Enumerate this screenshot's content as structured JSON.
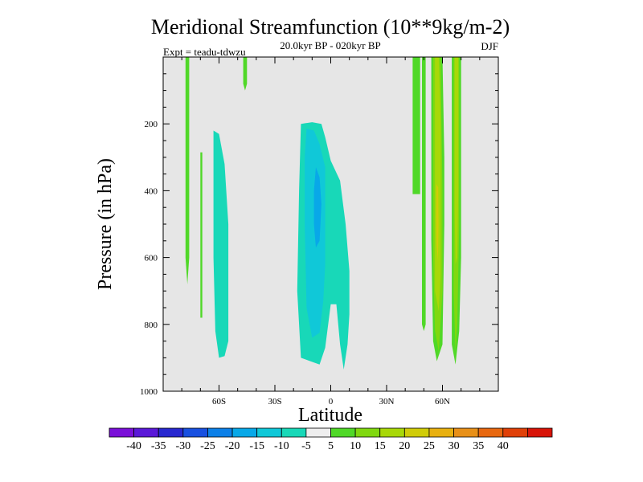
{
  "chart_data": {
    "type": "contour",
    "title": "Meridional Streamfunction (10**9kg/m-2)",
    "subtitle": "20.0kyr BP - 020kyr BP",
    "experiment": "Expt = teadu-tdwzu",
    "season": "DJF",
    "xlabel": "Latitude",
    "ylabel": "Pressure (in hPa)",
    "xlim": [
      -90,
      90
    ],
    "ylim": [
      1000,
      0
    ],
    "x_ticks": [
      {
        "value": -60,
        "label": "60S"
      },
      {
        "value": -30,
        "label": "30S"
      },
      {
        "value": 0,
        "label": "0"
      },
      {
        "value": 30,
        "label": "30N"
      },
      {
        "value": 60,
        "label": "60N"
      }
    ],
    "y_ticks": [
      {
        "value": 200,
        "label": "200"
      },
      {
        "value": 400,
        "label": "400"
      },
      {
        "value": 600,
        "label": "600"
      },
      {
        "value": 800,
        "label": "800"
      },
      {
        "value": 1000,
        "label": "1000"
      }
    ],
    "background_color": "#e6e6e6",
    "colorbar": {
      "colors": [
        "#7a10d8",
        "#5a18d8",
        "#2828d0",
        "#1850e0",
        "#0c80e8",
        "#08a8e8",
        "#10c8d8",
        "#18d8b8",
        "#eeeeee",
        "#50d828",
        "#80d810",
        "#a8d808",
        "#d0cc08",
        "#e8b010",
        "#e89018",
        "#e86810",
        "#e04008",
        "#d81408"
      ],
      "labels": [
        "-40",
        "-35",
        "-30",
        "-25",
        "-20",
        "-15",
        "-10",
        "-5",
        "5",
        "10",
        "15",
        "20",
        "25",
        "30",
        "35",
        "40"
      ]
    },
    "contour_regions": [
      {
        "name": "sh-polar-strip-a",
        "value": 7.5,
        "points": [
          [
            -78,
            0
          ],
          [
            -76,
            0
          ],
          [
            -76,
            600
          ],
          [
            -77,
            680
          ],
          [
            -78,
            600
          ]
        ]
      },
      {
        "name": "sh-polar-strip-b",
        "value": 7.5,
        "points": [
          [
            -70,
            285
          ],
          [
            -69,
            285
          ],
          [
            -69,
            780
          ],
          [
            -70,
            780
          ]
        ]
      },
      {
        "name": "sh-polar-strip-c",
        "value": 7.5,
        "points": [
          [
            -47,
            0
          ],
          [
            -45,
            0
          ],
          [
            -45,
            80
          ],
          [
            -46,
            100
          ],
          [
            -47,
            80
          ]
        ]
      },
      {
        "name": "sh-cell-outer",
        "value": -7.5,
        "points": [
          [
            -63,
            220
          ],
          [
            -60,
            230
          ],
          [
            -57,
            320
          ],
          [
            -55,
            500
          ],
          [
            -55,
            850
          ],
          [
            -57,
            895
          ],
          [
            -60,
            900
          ],
          [
            -62,
            820
          ],
          [
            -63,
            600
          ],
          [
            -63,
            400
          ]
        ]
      },
      {
        "name": "tropical-cell-outer",
        "value": -7.5,
        "points": [
          [
            -16,
            200
          ],
          [
            -10,
            195
          ],
          [
            -5,
            200
          ],
          [
            -3,
            240
          ],
          [
            0,
            310
          ],
          [
            5,
            370
          ],
          [
            8,
            500
          ],
          [
            10,
            640
          ],
          [
            10,
            770
          ],
          [
            9,
            860
          ],
          [
            7,
            935
          ],
          [
            5,
            860
          ],
          [
            3,
            740
          ],
          [
            0,
            740
          ],
          [
            -3,
            870
          ],
          [
            -6,
            920
          ],
          [
            -11,
            910
          ],
          [
            -16,
            900
          ],
          [
            -18,
            700
          ],
          [
            -17,
            400
          ]
        ]
      },
      {
        "name": "tropical-cell-inner",
        "value": -12.5,
        "points": [
          [
            -13,
            215
          ],
          [
            -9,
            220
          ],
          [
            -6,
            260
          ],
          [
            -3,
            330
          ],
          [
            -3,
            620
          ],
          [
            -4,
            730
          ],
          [
            -6,
            825
          ],
          [
            -10,
            840
          ],
          [
            -13,
            750
          ],
          [
            -14,
            500
          ],
          [
            -14,
            300
          ]
        ]
      },
      {
        "name": "tropical-cell-core",
        "value": -17.5,
        "points": [
          [
            -8,
            330
          ],
          [
            -6,
            360
          ],
          [
            -5,
            440
          ],
          [
            -6,
            550
          ],
          [
            -8,
            570
          ],
          [
            -9,
            500
          ],
          [
            -9,
            400
          ]
        ]
      },
      {
        "name": "nh-strip-a",
        "value": 7.5,
        "points": [
          [
            44,
            0
          ],
          [
            48,
            0
          ],
          [
            48,
            410
          ],
          [
            44,
            410
          ]
        ]
      },
      {
        "name": "nh-strip-b",
        "value": 7.5,
        "points": [
          [
            49,
            0
          ],
          [
            51,
            0
          ],
          [
            51,
            800
          ],
          [
            50,
            820
          ],
          [
            49,
            800
          ]
        ]
      },
      {
        "name": "nh-jet-a-outer",
        "value": 7.5,
        "points": [
          [
            54,
            0
          ],
          [
            60,
            0
          ],
          [
            61,
            300
          ],
          [
            61,
            500
          ],
          [
            60,
            860
          ],
          [
            57,
            910
          ],
          [
            55,
            850
          ],
          [
            54,
            550
          ]
        ]
      },
      {
        "name": "nh-jet-a-mid",
        "value": 12.5,
        "points": [
          [
            55,
            0
          ],
          [
            59,
            0
          ],
          [
            60,
            400
          ],
          [
            60,
            700
          ],
          [
            58,
            880
          ],
          [
            56,
            820
          ],
          [
            55,
            600
          ]
        ]
      },
      {
        "name": "nh-jet-a-inner",
        "value": 17.5,
        "points": [
          [
            56,
            0
          ],
          [
            58,
            0
          ],
          [
            59,
            200
          ],
          [
            59,
            650
          ],
          [
            58,
            760
          ],
          [
            56,
            700
          ],
          [
            56,
            400
          ]
        ]
      },
      {
        "name": "nh-jet-a-core",
        "value": 22.5,
        "points": [
          [
            56.7,
            380
          ],
          [
            57.7,
            390
          ],
          [
            57.9,
            500
          ],
          [
            57.6,
            610
          ],
          [
            56.8,
            560
          ],
          [
            56.6,
            480
          ]
        ]
      },
      {
        "name": "nh-jet-b-outer",
        "value": 7.5,
        "points": [
          [
            65,
            0
          ],
          [
            70,
            0
          ],
          [
            70,
            600
          ],
          [
            69,
            820
          ],
          [
            67,
            920
          ],
          [
            65,
            860
          ],
          [
            65,
            500
          ]
        ]
      },
      {
        "name": "nh-jet-b-mid",
        "value": 12.5,
        "points": [
          [
            66,
            0
          ],
          [
            69,
            0
          ],
          [
            69,
            500
          ],
          [
            68,
            800
          ],
          [
            67,
            880
          ],
          [
            66,
            700
          ]
        ]
      },
      {
        "name": "nh-jet-b-inner",
        "value": 17.5,
        "points": [
          [
            66.5,
            0
          ],
          [
            68.5,
            0
          ],
          [
            68.5,
            400
          ],
          [
            68,
            600
          ],
          [
            67,
            620
          ],
          [
            66.5,
            450
          ]
        ]
      }
    ]
  }
}
